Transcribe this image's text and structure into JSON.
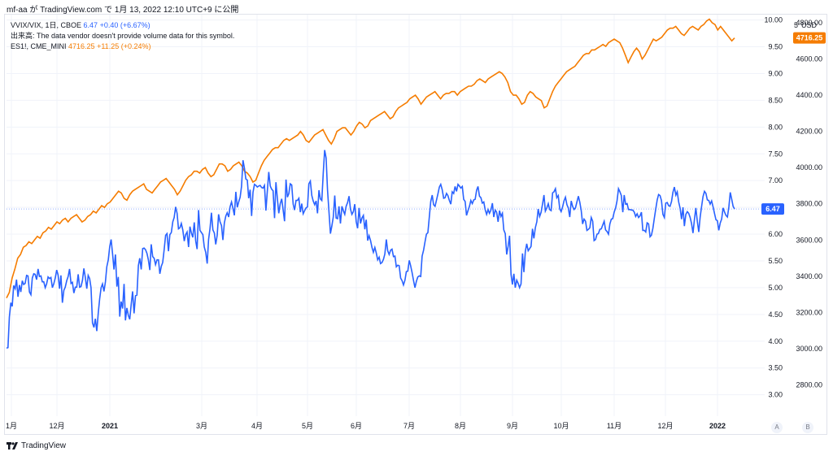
{
  "caption": "mf-aa が TradingView.com で 1月 13, 2022 12:10 UTC+9 に公開",
  "legend": {
    "s1_symbol": "VVIX/VIX, 1日, CBOE",
    "s1_value": "6.47",
    "s1_change": "+0.40 (+6.67%)",
    "volume_note": "出来高: The data vendor doesn't provide volume data for this symbol.",
    "s2_symbol": "ES1!, CME_MINI",
    "s2_value": "4716.25",
    "s2_change": "+11.25 (+0.24%)"
  },
  "usd_label": "USD",
  "right_clip_label": "5",
  "branding": "TradingView",
  "buttons": {
    "a": "A",
    "b": "B"
  },
  "colors": {
    "vvix_vix": "#2962ff",
    "es1": "#f57c00",
    "grid": "#f0f3fa"
  },
  "chart_data": {
    "type": "line",
    "x_tick_labels": [
      "1月",
      "12月",
      "2021",
      "3月",
      "4月",
      "5月",
      "6月",
      "7月",
      "8月",
      "9月",
      "10月",
      "11月",
      "12月",
      "2022"
    ],
    "left_axis": {
      "ticks": [
        "10.00",
        "9.50",
        "9.00",
        "8.50",
        "8.00",
        "7.50",
        "7.00",
        "6.50",
        "6.00",
        "5.50",
        "5.00",
        "4.50",
        "4.00",
        "3.50",
        "3.00"
      ],
      "range": [
        2.6,
        10.1
      ]
    },
    "right_axis": {
      "ticks": [
        "4800.00",
        "4600.00",
        "4400.00",
        "4200.00",
        "4000.00",
        "3800.00",
        "3600.00",
        "3400.00",
        "3200.00",
        "3000.00",
        "2800.00"
      ],
      "range": [
        2627,
        4845
      ]
    },
    "last_value_labels": {
      "vvix_vix": "6.47",
      "es1": "4716.25"
    },
    "series": [
      {
        "name": "VVIX/VIX",
        "axis": "left",
        "values": [
          3.87,
          3.88,
          4.45,
          4.72,
          4.65,
          5.04,
          4.98,
          5.15,
          4.83,
          5.05,
          4.92,
          5.13,
          5.06,
          5.08,
          5.23,
          5.22,
          4.92,
          4.87,
          5.18,
          5.26,
          5.25,
          5.15,
          5.35,
          5.21,
          5.22,
          5.11,
          5.11,
          5.0,
          5.07,
          5.2,
          5.17,
          5.19,
          5.0,
          5.07,
          5.18,
          5.33,
          5.24,
          4.98,
          5.23,
          4.72,
          4.95,
          5.01,
          5.13,
          5.21,
          5.35,
          5.08,
          5.1,
          4.9,
          5.01,
          5.01,
          5.25,
          5.01,
          5.02,
          5.14,
          5.36,
          5.19,
          4.98,
          5.23,
          5.17,
          5.0,
          4.34,
          4.26,
          4.42,
          4.19,
          4.53,
          4.79,
          5.0,
          5.07,
          4.93,
          5.11,
          5.39,
          5.52,
          5.77,
          5.9,
          5.63,
          5.34,
          5.62,
          5.02,
          5.2,
          4.46,
          4.74,
          4.61,
          5.07,
          4.39,
          4.62,
          4.48,
          4.41,
          4.69,
          4.93,
          4.52,
          4.85,
          4.86,
          5.41,
          5.55,
          5.34,
          5.73,
          5.74,
          5.71,
          5.64,
          5.52,
          5.33,
          5.81,
          5.58,
          5.55,
          5.43,
          5.52,
          5.52,
          5.26,
          5.4,
          5.47,
          5.71,
          5.98,
          6.01,
          5.68,
          5.99,
          6.03,
          6.23,
          6.31,
          6.51,
          6.39,
          6.1,
          6.12,
          6.2,
          6.08,
          5.87,
          5.99,
          6.04,
          5.76,
          6.14,
          6.02,
          5.94,
          6.22,
          5.87,
          5.72,
          6.45,
          6.07,
          6.03,
          5.99,
          5.76,
          5.66,
          5.45,
          5.9,
          6.11,
          6.4,
          6.08,
          6.02,
          5.81,
          5.98,
          6.37,
          6.23,
          6.16,
          5.89,
          6.21,
          6.34,
          6.4,
          6.32,
          6.51,
          6.6,
          6.48,
          6.35,
          6.79,
          6.5,
          6.6,
          6.69,
          6.89,
          7.38,
          7.23,
          7.03,
          7.01,
          6.67,
          6.83,
          6.34,
          6.78,
          6.93,
          6.91,
          6.88,
          6.9,
          6.91,
          6.87,
          6.86,
          6.91,
          6.44,
          6.8,
          7.16,
          6.9,
          6.84,
          6.81,
          6.3,
          6.97,
          6.66,
          6.39,
          6.57,
          6.66,
          6.46,
          6.24,
          7.02,
          6.69,
          6.76,
          6.94,
          6.92,
          6.56,
          6.45,
          6.63,
          6.63,
          6.67,
          6.41,
          6.57,
          6.38,
          6.44,
          6.49,
          6.51,
          6.94,
          6.99,
          6.72,
          6.62,
          6.55,
          6.62,
          6.39,
          6.82,
          6.66,
          6.63,
          7.15,
          7.57,
          7.42,
          6.83,
          6.42,
          6.01,
          6.15,
          6.32,
          6.72,
          6.3,
          6.29,
          6.52,
          6.2,
          6.52,
          6.44,
          6.37,
          6.52,
          6.59,
          6.71,
          6.47,
          6.37,
          6.42,
          6.56,
          6.23,
          6.11,
          6.49,
          6.2,
          6.3,
          6.35,
          6.09,
          6.27,
          5.88,
          5.97,
          5.88,
          5.75,
          5.66,
          5.75,
          5.65,
          5.52,
          5.57,
          5.45,
          5.47,
          5.53,
          5.63,
          5.9,
          5.69,
          5.62,
          5.7,
          5.72,
          5.58,
          5.59,
          5.39,
          5.42,
          5.41,
          5.18,
          5.13,
          5.05,
          5.14,
          5.3,
          5.31,
          5.51,
          5.41,
          5.28,
          5.13,
          5.0,
          5.12,
          5.2,
          5.22,
          5.21,
          5.59,
          5.7,
          5.85,
          6.0,
          6.03,
          6.31,
          6.61,
          6.73,
          6.55,
          6.52,
          6.63,
          6.75,
          6.88,
          6.93,
          6.83,
          6.67,
          6.68,
          6.76,
          6.72,
          6.63,
          6.56,
          6.79,
          6.76,
          6.89,
          6.8,
          6.93,
          6.9,
          6.86,
          6.89,
          6.65,
          6.61,
          6.35,
          6.44,
          6.52,
          6.63,
          6.57,
          6.64,
          6.65,
          6.82,
          6.89,
          6.71,
          6.68,
          6.58,
          6.6,
          6.46,
          6.37,
          6.46,
          6.39,
          6.45,
          6.58,
          6.32,
          6.45,
          6.41,
          6.23,
          6.44,
          6.33,
          6.39,
          6.08,
          6.01,
          5.62,
          5.77,
          5.97,
          5.25,
          5.06,
          5.26,
          5.0,
          5.14,
          5.08,
          5.0,
          5.07,
          5.64,
          5.29,
          5.68,
          5.82,
          5.69,
          5.73,
          5.77,
          6.1,
          5.92,
          6.12,
          6.23,
          6.47,
          6.33,
          6.41,
          6.56,
          6.73,
          6.43,
          6.49,
          6.57,
          6.46,
          6.44,
          6.77,
          6.79,
          6.85,
          6.68,
          6.72,
          6.47,
          6.42,
          6.51,
          6.62,
          6.69,
          6.55,
          6.49,
          6.32,
          6.62,
          6.52,
          6.46,
          6.49,
          6.6,
          6.71,
          6.6,
          6.44,
          6.19,
          6.28,
          6.24,
          6.07,
          6.09,
          6.12,
          6.31,
          6.24,
          5.88,
          5.9,
          6.0,
          6.01,
          6.09,
          6.1,
          6.17,
          6.24,
          6.08,
          6.05,
          6.0,
          6.19,
          6.28,
          6.29,
          6.41,
          6.49,
          6.62,
          6.85,
          6.79,
          6.72,
          6.41,
          6.73,
          6.56,
          6.57,
          6.46,
          6.46,
          6.45,
          6.45,
          6.41,
          6.33,
          6.38,
          6.31,
          6.34,
          6.41,
          6.07,
          6.07,
          6.04,
          6.21,
          6.19,
          5.95,
          5.98,
          6.11,
          6.29,
          6.47,
          6.64,
          6.74,
          6.72,
          6.63,
          6.37,
          6.31,
          6.58,
          6.59,
          6.53,
          6.52,
          6.61,
          6.78,
          6.88,
          6.73,
          6.79,
          6.6,
          6.48,
          6.28,
          6.5,
          6.15,
          6.37,
          6.42,
          6.39,
          6.31,
          6.2,
          6.02,
          6.28,
          6.49,
          6.24,
          6.04,
          6.32,
          6.52,
          6.7,
          6.8,
          6.76,
          6.64,
          6.63,
          6.56,
          6.62,
          6.51,
          6.39,
          6.27,
          6.25,
          6.07,
          6.21,
          6.28,
          6.49,
          6.41,
          6.35,
          6.32,
          6.51,
          6.78,
          6.65,
          6.52,
          6.47
        ]
      },
      {
        "name": "ES1!",
        "axis": "right",
        "values": [
          3280,
          3310,
          3390,
          3440,
          3500,
          3520,
          3560,
          3570,
          3590,
          3580,
          3600,
          3620,
          3610,
          3640,
          3650,
          3670,
          3660,
          3680,
          3700,
          3690,
          3710,
          3720,
          3700,
          3720,
          3730,
          3740,
          3720,
          3700,
          3710,
          3730,
          3740,
          3760,
          3750,
          3770,
          3790,
          3780,
          3800,
          3810,
          3830,
          3850,
          3870,
          3860,
          3830,
          3820,
          3850,
          3870,
          3880,
          3890,
          3900,
          3910,
          3880,
          3870,
          3860,
          3880,
          3900,
          3920,
          3930,
          3940,
          3920,
          3900,
          3880,
          3850,
          3870,
          3900,
          3930,
          3950,
          3960,
          3980,
          3980,
          3970,
          3990,
          4000,
          3970,
          3950,
          3960,
          3990,
          4020,
          4020,
          4010,
          3980,
          3990,
          4010,
          4020,
          4030,
          4010,
          3980,
          3970,
          3950,
          3920,
          3930,
          3970,
          4010,
          4040,
          4060,
          4080,
          4100,
          4110,
          4110,
          4130,
          4150,
          4160,
          4150,
          4160,
          4170,
          4180,
          4200,
          4180,
          4150,
          4140,
          4160,
          4180,
          4190,
          4200,
          4210,
          4180,
          4150,
          4130,
          4160,
          4200,
          4210,
          4220,
          4220,
          4200,
          4180,
          4200,
          4230,
          4250,
          4240,
          4220,
          4230,
          4260,
          4270,
          4280,
          4290,
          4300,
          4310,
          4290,
          4270,
          4280,
          4310,
          4330,
          4340,
          4350,
          4360,
          4380,
          4390,
          4400,
          4380,
          4350,
          4370,
          4390,
          4400,
          4410,
          4420,
          4400,
          4380,
          4400,
          4410,
          4410,
          4420,
          4420,
          4400,
          4420,
          4430,
          4440,
          4450,
          4450,
          4460,
          4480,
          4490,
          4480,
          4470,
          4490,
          4500,
          4510,
          4520,
          4530,
          4520,
          4500,
          4470,
          4420,
          4400,
          4400,
          4380,
          4350,
          4360,
          4400,
          4420,
          4410,
          4390,
          4380,
          4370,
          4330,
          4340,
          4380,
          4420,
          4450,
          4470,
          4490,
          4510,
          4530,
          4540,
          4550,
          4560,
          4580,
          4600,
          4620,
          4630,
          4630,
          4650,
          4650,
          4660,
          4670,
          4680,
          4670,
          4690,
          4700,
          4710,
          4700,
          4690,
          4660,
          4620,
          4580,
          4610,
          4640,
          4660,
          4640,
          4600,
          4620,
          4650,
          4680,
          4710,
          4700,
          4710,
          4720,
          4740,
          4760,
          4770,
          4770,
          4780,
          4760,
          4740,
          4730,
          4750,
          4770,
          4780,
          4770,
          4760,
          4780,
          4790,
          4810,
          4820,
          4800,
          4790,
          4760,
          4780,
          4760,
          4740,
          4720,
          4700,
          4716
        ]
      }
    ]
  }
}
